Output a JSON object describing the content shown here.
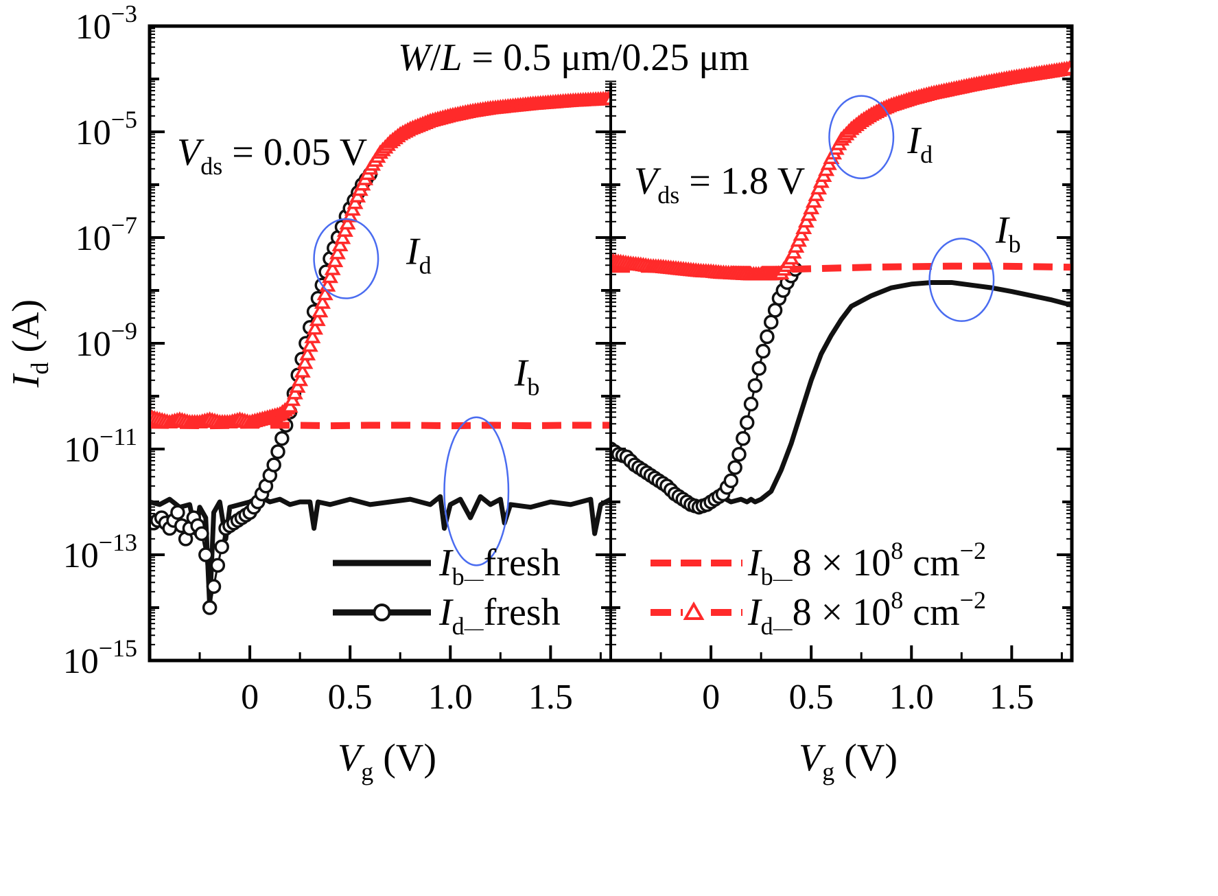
{
  "chart_data": {
    "type": "scatter",
    "panels": [
      {
        "annotation_var": "V",
        "annotation_sub": "ds",
        "annotation_value": " = 0.05 V",
        "xlabel_var": "V",
        "xlabel_sub": "g",
        "xlabel_unit": " (V)",
        "xlim": [
          -0.5,
          1.8
        ],
        "xticks": [
          "0",
          "0.5",
          "1.0",
          "1.5"
        ],
        "xtick_values": [
          0,
          0.5,
          1.0,
          1.5
        ],
        "callouts": [
          {
            "var": "I",
            "sub": "d",
            "label_at": [
              0.78,
              -7.5
            ],
            "ellipse_center": [
              0.48,
              -7.4
            ],
            "ellipse_r": [
              0.16,
              0.75
            ]
          },
          {
            "var": "I",
            "sub": "b",
            "label_at": [
              1.32,
              -9.8
            ],
            "ellipse_center": [
              1.13,
              -11.8
            ],
            "ellipse_r": [
              0.16,
              1.4
            ]
          }
        ],
        "series": {
          "Ib_fresh": {
            "x": [
              -0.5,
              -0.45,
              -0.4,
              -0.35,
              -0.3,
              -0.27,
              -0.25,
              -0.22,
              -0.2,
              -0.18,
              -0.15,
              -0.12,
              -0.1,
              -0.05,
              0,
              0.05,
              0.1,
              0.15,
              0.2,
              0.25,
              0.3,
              0.32,
              0.34,
              0.4,
              0.5,
              0.6,
              0.7,
              0.8,
              0.9,
              0.95,
              0.97,
              1.0,
              1.05,
              1.1,
              1.15,
              1.2,
              1.25,
              1.27,
              1.3,
              1.4,
              1.5,
              1.6,
              1.7,
              1.72,
              1.75,
              1.8
            ],
            "y": [
              -12.0,
              -12.05,
              -11.95,
              -12.1,
              -12.05,
              -12.6,
              -12.1,
              -12.3,
              -14.0,
              -12.2,
              -12.0,
              -12.7,
              -12.1,
              -12.05,
              -12.0,
              -11.9,
              -12.0,
              -11.95,
              -12.05,
              -12.0,
              -12.0,
              -12.5,
              -12.0,
              -12.05,
              -11.95,
              -12.05,
              -12.0,
              -11.95,
              -12.05,
              -11.9,
              -12.5,
              -12.05,
              -11.95,
              -12.3,
              -11.9,
              -12.05,
              -11.95,
              -12.4,
              -12.05,
              -12.1,
              -12.0,
              -12.05,
              -11.95,
              -12.6,
              -12.05,
              -11.95
            ]
          },
          "Id_fresh": {
            "x": [
              -0.48,
              -0.44,
              -0.4,
              -0.36,
              -0.32,
              -0.28,
              -0.24,
              -0.22,
              -0.2,
              -0.16,
              -0.12,
              -0.08,
              -0.04,
              0,
              0.04,
              0.08,
              0.12,
              0.16,
              0.2,
              0.24,
              0.28,
              0.32,
              0.36,
              0.4,
              0.44,
              0.48,
              0.52,
              0.56,
              0.6
            ],
            "y": [
              -12.4,
              -12.3,
              -12.5,
              -12.2,
              -12.7,
              -12.3,
              -12.6,
              -13.0,
              -14.0,
              -13.2,
              -12.5,
              -12.4,
              -12.3,
              -12.2,
              -12.0,
              -11.7,
              -11.3,
              -10.8,
              -10.3,
              -9.6,
              -9.0,
              -8.4,
              -7.9,
              -7.4,
              -7.0,
              -6.6,
              -6.3,
              -6.0,
              -5.8
            ]
          },
          "Ib_stress": {
            "x": [
              -0.5,
              -0.2,
              0,
              0.2,
              0.4,
              0.6,
              0.8,
              1.0,
              1.2,
              1.4,
              1.6,
              1.8
            ],
            "y": [
              -10.55,
              -10.56,
              -10.55,
              -10.55,
              -10.56,
              -10.55,
              -10.55,
              -10.56,
              -10.55,
              -10.56,
              -10.55,
              -10.55
            ]
          },
          "Id_stress": {
            "x": [
              -0.5,
              -0.45,
              -0.4,
              -0.35,
              -0.3,
              -0.25,
              -0.2,
              -0.15,
              -0.1,
              -0.05,
              0,
              0.05,
              0.1,
              0.15,
              0.2,
              0.25,
              0.3,
              0.35,
              0.4,
              0.45,
              0.5,
              0.55,
              0.6,
              0.65,
              0.7,
              0.75,
              0.8,
              0.9,
              1.0,
              1.1,
              1.2,
              1.3,
              1.4,
              1.5,
              1.6,
              1.7,
              1.8
            ],
            "y": [
              -10.4,
              -10.45,
              -10.5,
              -10.45,
              -10.5,
              -10.5,
              -10.45,
              -10.5,
              -10.5,
              -10.45,
              -10.5,
              -10.45,
              -10.4,
              -10.35,
              -10.2,
              -9.7,
              -9.05,
              -8.4,
              -7.75,
              -7.15,
              -6.6,
              -6.1,
              -5.7,
              -5.4,
              -5.2,
              -5.05,
              -4.95,
              -4.8,
              -4.7,
              -4.62,
              -4.56,
              -4.52,
              -4.48,
              -4.45,
              -4.42,
              -4.4,
              -4.38
            ]
          }
        }
      },
      {
        "annotation_var": "V",
        "annotation_sub": "ds",
        "annotation_value": " = 1.8 V",
        "xlabel_var": "V",
        "xlabel_sub": "g",
        "xlabel_unit": " (V)",
        "xlim": [
          -0.5,
          1.8
        ],
        "xticks": [
          "0",
          "0.5",
          "1.0",
          "1.5"
        ],
        "xtick_values": [
          0,
          0.5,
          1.0,
          1.5
        ],
        "callouts": [
          {
            "var": "I",
            "sub": "d",
            "label_at": [
              0.98,
              -5.4
            ],
            "ellipse_center": [
              0.75,
              -5.1
            ],
            "ellipse_r": [
              0.16,
              0.78
            ]
          },
          {
            "var": "I",
            "sub": "b",
            "label_at": [
              1.42,
              -7.1
            ],
            "ellipse_center": [
              1.25,
              -7.8
            ],
            "ellipse_r": [
              0.16,
              0.78
            ]
          }
        ],
        "series": {
          "Ib_fresh": {
            "x": [
              0.05,
              0.1,
              0.15,
              0.18,
              0.2,
              0.22,
              0.25,
              0.3,
              0.35,
              0.4,
              0.45,
              0.5,
              0.55,
              0.6,
              0.65,
              0.7,
              0.8,
              0.9,
              1.0,
              1.1,
              1.2,
              1.3,
              1.4,
              1.5,
              1.6,
              1.7,
              1.8
            ],
            "y": [
              -11.9,
              -12.0,
              -11.95,
              -12.0,
              -11.95,
              -12.0,
              -11.95,
              -11.8,
              -11.4,
              -10.9,
              -10.3,
              -9.7,
              -9.2,
              -8.85,
              -8.55,
              -8.3,
              -8.1,
              -7.95,
              -7.88,
              -7.85,
              -7.85,
              -7.9,
              -7.95,
              -8.02,
              -8.1,
              -8.18,
              -8.28
            ]
          },
          "Id_fresh": {
            "x": [
              -0.5,
              -0.46,
              -0.42,
              -0.38,
              -0.34,
              -0.3,
              -0.26,
              -0.22,
              -0.18,
              -0.14,
              -0.1,
              -0.06,
              -0.02,
              0.02,
              0.06,
              0.1,
              0.14,
              0.18,
              0.22,
              0.26,
              0.3,
              0.34,
              0.38,
              0.42
            ],
            "y": [
              -11.0,
              -11.1,
              -11.15,
              -11.3,
              -11.4,
              -11.5,
              -11.6,
              -11.7,
              -11.85,
              -11.95,
              -12.05,
              -12.1,
              -12.05,
              -11.95,
              -11.85,
              -11.6,
              -11.1,
              -10.5,
              -9.8,
              -9.15,
              -8.6,
              -8.15,
              -7.85,
              -7.6
            ]
          },
          "Ib_stress": {
            "x": [
              -0.5,
              -0.2,
              0,
              0.2,
              0.4,
              0.6,
              0.8,
              1.0,
              1.2,
              1.4,
              1.6,
              1.8
            ],
            "y": [
              -7.6,
              -7.6,
              -7.6,
              -7.6,
              -7.6,
              -7.58,
              -7.56,
              -7.55,
              -7.54,
              -7.54,
              -7.55,
              -7.56
            ]
          },
          "Id_stress": {
            "x": [
              -0.5,
              -0.45,
              -0.4,
              -0.35,
              -0.3,
              -0.25,
              -0.2,
              -0.15,
              -0.1,
              -0.05,
              0,
              0.05,
              0.1,
              0.15,
              0.2,
              0.25,
              0.3,
              0.35,
              0.4,
              0.45,
              0.5,
              0.55,
              0.6,
              0.65,
              0.7,
              0.75,
              0.8,
              0.85,
              0.9,
              1.0,
              1.1,
              1.2,
              1.3,
              1.4,
              1.5,
              1.6,
              1.7,
              1.8
            ],
            "y": [
              -7.45,
              -7.47,
              -7.5,
              -7.52,
              -7.55,
              -7.56,
              -7.58,
              -7.6,
              -7.62,
              -7.64,
              -7.65,
              -7.67,
              -7.68,
              -7.69,
              -7.7,
              -7.7,
              -7.7,
              -7.68,
              -7.4,
              -6.95,
              -6.45,
              -5.95,
              -5.5,
              -5.15,
              -4.95,
              -4.8,
              -4.68,
              -4.58,
              -4.5,
              -4.38,
              -4.28,
              -4.2,
              -4.12,
              -4.05,
              -3.98,
              -3.92,
              -3.86,
              -3.8
            ]
          }
        }
      }
    ],
    "ylabel_var": "I",
    "ylabel_sub": "d",
    "ylabel_unit": " (A)",
    "y_scale": "log",
    "ylim_exponent": [
      -15,
      -3
    ],
    "yticks": [
      {
        "base": "10",
        "exp": "−3",
        "value": -3
      },
      {
        "base": "10",
        "exp": "−5",
        "value": -5
      },
      {
        "base": "10",
        "exp": "−7",
        "value": -7
      },
      {
        "base": "10",
        "exp": "−9",
        "value": -9
      },
      {
        "base": "10",
        "exp": "−11",
        "value": -11
      },
      {
        "base": "10",
        "exp": "−13",
        "value": -13
      },
      {
        "base": "10",
        "exp": "−15",
        "value": -15
      }
    ],
    "annotation_top": {
      "w": "W",
      "slash": "/",
      "l": "L",
      "rest": " = 0.5 μm/0.25 μm"
    },
    "legend": [
      {
        "var": "I",
        "sub": "b",
        "text": "fresh",
        "style": "solid-black"
      },
      {
        "var": "I",
        "sub": "d",
        "text": "fresh",
        "style": "black-circle"
      },
      {
        "var": "I",
        "sub": "b",
        "text": "8 × 10",
        "sup": "8",
        "unit": " cm",
        "unit_sup": "−2",
        "style": "dashed-red"
      },
      {
        "var": "I",
        "sub": "d",
        "text": "8 × 10",
        "sup": "8",
        "unit": " cm",
        "unit_sup": "−2",
        "style": "red-triangle"
      }
    ],
    "colors": {
      "stress": "#ff2a2a",
      "fresh": "#111111",
      "callout": "#4a6cf0"
    }
  }
}
